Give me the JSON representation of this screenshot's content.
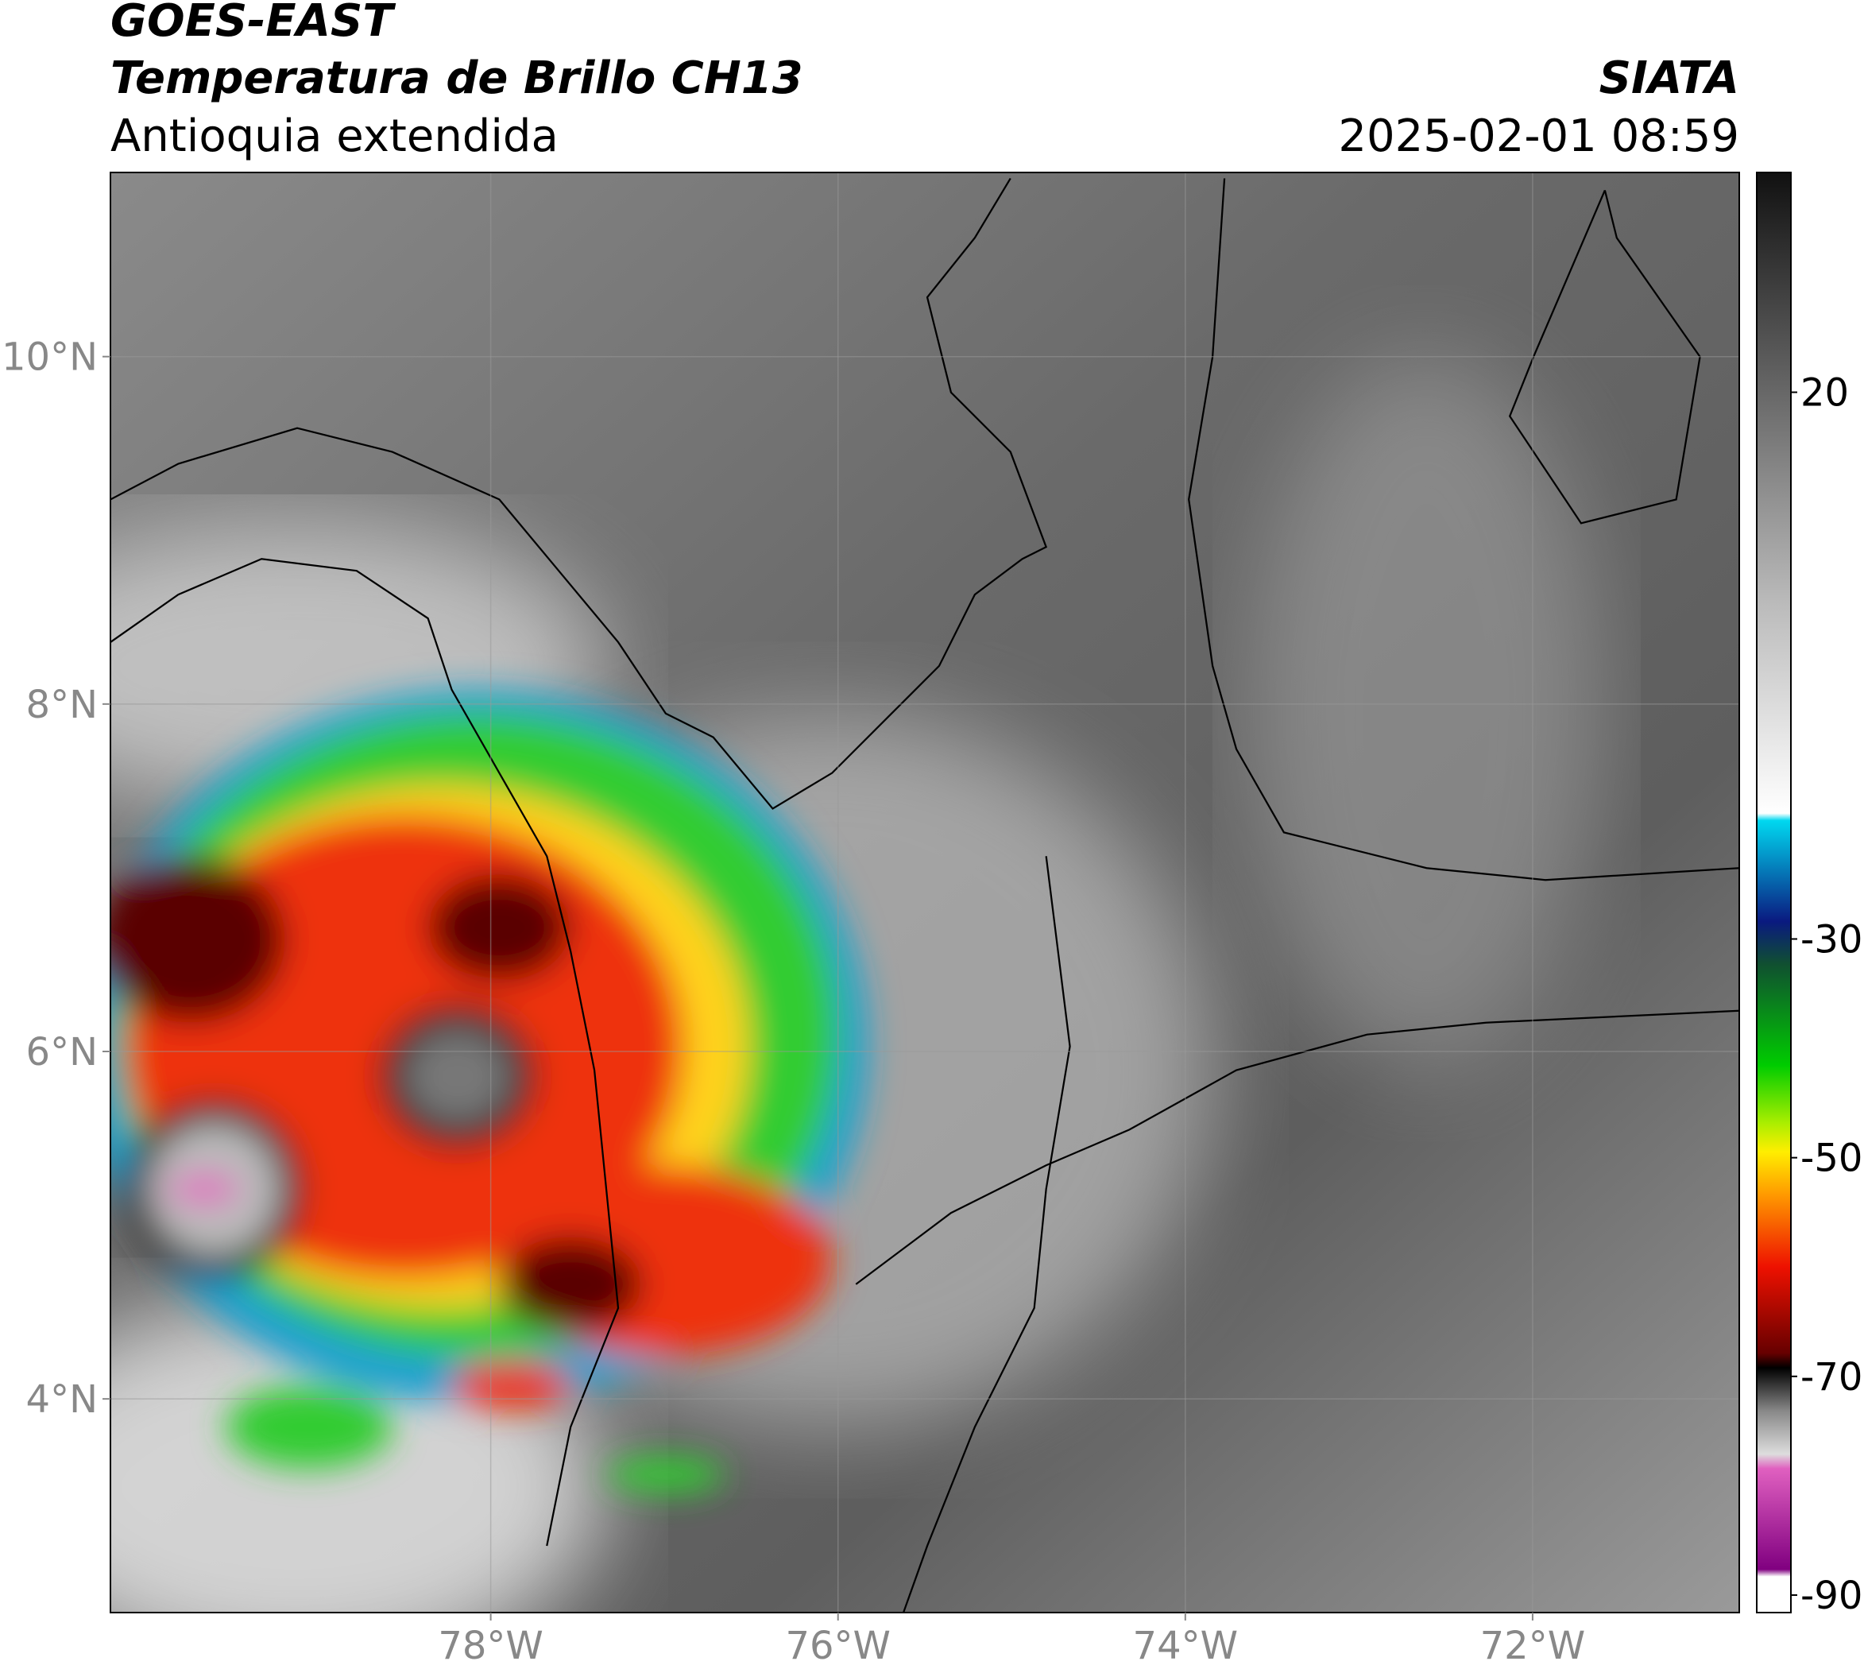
{
  "header": {
    "satellite": "GOES-EAST",
    "product": "Temperatura de Brillo CH13",
    "region": "Antioquia extendida",
    "agency": "SIATA",
    "datetime": "2025-02-01 08:59"
  },
  "map": {
    "lon_lim": [
      -80.19,
      -70.81
    ],
    "lat_lim": [
      2.77,
      11.06
    ],
    "lon_ticks": [
      {
        "value": -78,
        "label": "78°W"
      },
      {
        "value": -76,
        "label": "76°W"
      },
      {
        "value": -74,
        "label": "74°W"
      },
      {
        "value": -72,
        "label": "72°W"
      }
    ],
    "lat_ticks": [
      {
        "value": 4,
        "label": "4°N"
      },
      {
        "value": 6,
        "label": "6°N"
      },
      {
        "value": 8,
        "label": "8°N"
      },
      {
        "value": 10,
        "label": "10°N"
      }
    ],
    "grid": true
  },
  "colorbar": {
    "lim": [
      -91.6,
      40.1
    ],
    "ticks": [
      20,
      -30,
      -50,
      -70,
      -90
    ]
  }
}
